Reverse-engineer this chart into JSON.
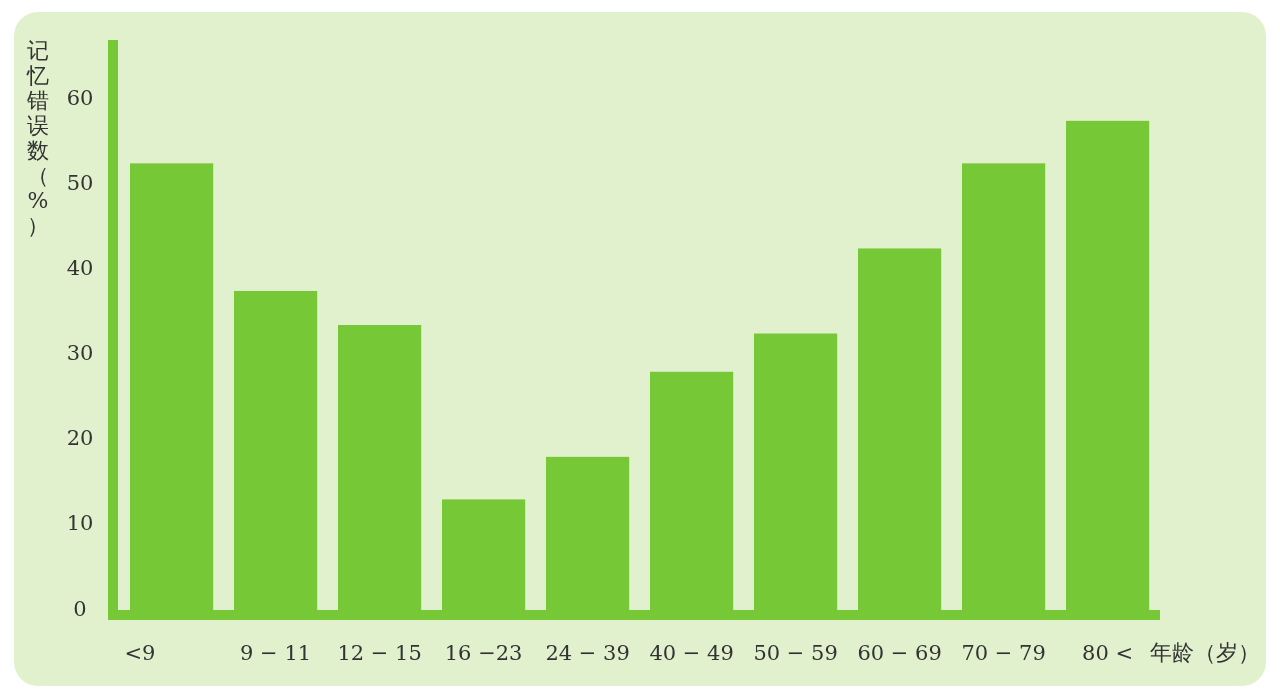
{
  "chart_data": {
    "type": "bar",
    "ylabel": "记忆错误数（%）",
    "xlabel": "年龄（岁）",
    "categories": [
      "<9",
      "9 − 11",
      "12 − 15",
      "16 −23",
      "24 − 39",
      "40 − 49",
      "50 − 59",
      "60 − 69",
      "70 − 79",
      "80 <"
    ],
    "series": [
      {
        "color": "#76c837",
        "values": [
          52.5,
          37.5,
          33.5,
          13,
          18,
          28,
          32.5,
          42.5,
          52.5,
          57.5
        ]
      }
    ],
    "ylim": [
      0,
      67
    ],
    "yticks": [
      0,
      10,
      20,
      30,
      40,
      50,
      60
    ],
    "grid": false
  }
}
